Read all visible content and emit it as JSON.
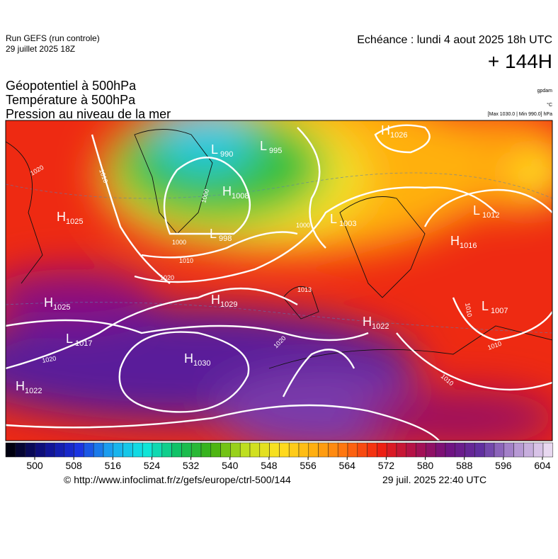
{
  "header": {
    "run": "Run GEFS (run controle)",
    "run_date": "29 juillet 2025 18Z",
    "valid": "Echéance : lundi 4 aout 2025 18h UTC",
    "lead": "+ 144H"
  },
  "titles": [
    "Géopotentiel à 500hPa",
    "Température à 500hPa",
    "Pression au niveau de la mer"
  ],
  "units": [
    "gpdam",
    "°C",
    "[Max 1030.0 | Min 990.0] hPa"
  ],
  "pressure_centers": [
    {
      "type": "H",
      "value": 1025
    },
    {
      "type": "L",
      "value": 990
    },
    {
      "type": "L",
      "value": 995
    },
    {
      "type": "H",
      "value": 1008
    },
    {
      "type": "L",
      "value": 998
    },
    {
      "type": "L",
      "value": 1003
    },
    {
      "type": "H",
      "value": 1026
    },
    {
      "type": "L",
      "value": 1012
    },
    {
      "type": "H",
      "value": 1016
    },
    {
      "type": "H",
      "value": 1025
    },
    {
      "type": "H",
      "value": 1029
    },
    {
      "type": "L",
      "value": 1017
    },
    {
      "type": "H",
      "value": 1030
    },
    {
      "type": "H",
      "value": 1022
    },
    {
      "type": "H",
      "value": 1022
    },
    {
      "type": "L",
      "value": 1007
    }
  ],
  "isobar_labels": [
    1020,
    1010,
    1000,
    1000,
    1010,
    1020,
    1000,
    1013,
    1020,
    1020,
    1010,
    1010,
    1010
  ],
  "colorbar": {
    "ticks": [
      500,
      508,
      516,
      524,
      532,
      540,
      548,
      556,
      564,
      572,
      580,
      588,
      596,
      604
    ]
  },
  "footer": {
    "source": "© http://www.infoclimat.fr/z/gefs/europe/ctrl-500/144",
    "generated": "29 juil. 2025 22:40 UTC"
  }
}
